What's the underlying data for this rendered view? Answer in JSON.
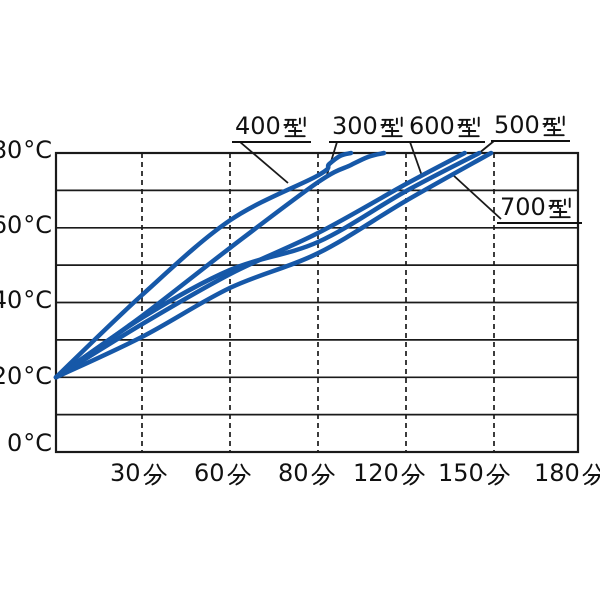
{
  "chart_data": {
    "type": "line",
    "title": "",
    "x_axis": {
      "unit": "分",
      "tick_labels": [
        "30分",
        "60分",
        "80分",
        "120分",
        "150分",
        "180分"
      ],
      "ticks_equally_spaced": true,
      "gridlines": "dashed-vertical"
    },
    "y_axis": {
      "unit": "℃",
      "tick_labels": [
        "80℃",
        "60℃",
        "40℃",
        "20℃",
        "0℃"
      ],
      "range": [
        0,
        80
      ],
      "gridline_step_degC": 10,
      "gridlines": "solid-horizontal"
    },
    "series": [
      {
        "name": "400型",
        "points_time_temp": [
          [
            0,
            20
          ],
          [
            30,
            42
          ],
          [
            60,
            62
          ],
          [
            80,
            74
          ],
          [
            85,
            77
          ],
          [
            90,
            79.2
          ],
          [
            95,
            80
          ]
        ]
      },
      {
        "name": "300型",
        "points_time_temp": [
          [
            0,
            20
          ],
          [
            30,
            36.4
          ],
          [
            60,
            54.6
          ],
          [
            80,
            72.2
          ],
          [
            95,
            76.8
          ],
          [
            103,
            79
          ],
          [
            110,
            80
          ]
        ]
      },
      {
        "name": "600型",
        "points_time_temp": [
          [
            0,
            20
          ],
          [
            30,
            34.2
          ],
          [
            60,
            47.6
          ],
          [
            80,
            58.6
          ],
          [
            120,
            71.7
          ],
          [
            140,
            80
          ]
        ]
      },
      {
        "name": "500型",
        "points_time_temp": [
          [
            0,
            20
          ],
          [
            30,
            35.9
          ],
          [
            60,
            48.7
          ],
          [
            80,
            56.2
          ],
          [
            120,
            69.8
          ],
          [
            145,
            80
          ]
        ]
      },
      {
        "name": "700型",
        "points_time_temp": [
          [
            0,
            20
          ],
          [
            30,
            30.8
          ],
          [
            60,
            43.9
          ],
          [
            80,
            53.2
          ],
          [
            120,
            67.2
          ],
          [
            149,
            80
          ]
        ]
      }
    ],
    "legend_position": "labels-with-leader-lines-above-plot",
    "curve_color": "#1658a8"
  },
  "axes": {
    "y_unit_display": "°C",
    "y_ticks": [
      {
        "label": "80℃",
        "num": "80"
      },
      {
        "label": "60℃",
        "num": "60"
      },
      {
        "label": "40℃",
        "num": "40"
      },
      {
        "label": "20℃",
        "num": "20"
      },
      {
        "label": "0℃",
        "num": "0"
      }
    ],
    "x_ticks": [
      {
        "label": "30分",
        "num": "30"
      },
      {
        "label": "60分",
        "num": "60"
      },
      {
        "label": "80分",
        "num": "80"
      },
      {
        "label": "120分",
        "num": "120"
      },
      {
        "label": "150分",
        "num": "150"
      },
      {
        "label": "180分",
        "num": "180"
      }
    ]
  },
  "series_labels": [
    {
      "label": "400型",
      "num": "400"
    },
    {
      "label": "300型",
      "num": "300"
    },
    {
      "label": "600型",
      "num": "600"
    },
    {
      "label": "500型",
      "num": "500"
    },
    {
      "label": "700型",
      "num": "700"
    }
  ],
  "colors": {
    "curve": "#1658a8",
    "line": "#1a1a1a"
  }
}
